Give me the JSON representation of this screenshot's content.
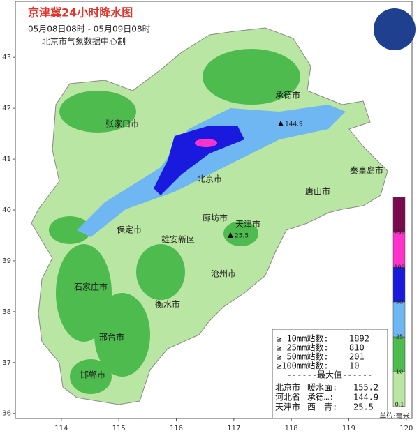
{
  "header": {
    "title": "京津冀24小时降水图",
    "period": "05月08日08时 - 05月09日08时",
    "source": "北京市气象数据中心制"
  },
  "axes": {
    "xlim": [
      113.2,
      120.1
    ],
    "ylim": [
      35.9,
      44.1
    ],
    "xticks": [
      114,
      115,
      116,
      117,
      118,
      119,
      120
    ],
    "yticks": [
      36,
      37,
      38,
      39,
      40,
      41,
      42,
      43
    ]
  },
  "cities": [
    "承德市",
    "张家口市",
    "北京市",
    "秦皇岛市",
    "唐山市",
    "廊坊市",
    "天津市",
    "保定市",
    "雄安新区",
    "沧州市",
    "石家庄市",
    "衡水市",
    "邢台市",
    "邯郸市"
  ],
  "stations": [
    144.9,
    25.5
  ],
  "legend": {
    "levels": [
      0.1,
      10,
      25,
      50,
      100,
      250
    ],
    "colors": [
      "#b9e6a2",
      "#4dbb4d",
      "#6fb7f2",
      "#1a1adf",
      "#ff33cc",
      "#7a0a4e"
    ],
    "unit": "单位:毫米"
  },
  "stats": {
    "counts": [
      {
        "label": "≥ 10mm站数:",
        "value": 1892
      },
      {
        "label": "≥ 25mm站数:",
        "value": 810
      },
      {
        "label": "≥ 50mm站数:",
        "value": 201
      },
      {
        "label": "≥100mm站数:",
        "value": 10
      }
    ],
    "max_title": "------最大值------",
    "max": [
      {
        "region": "北京市",
        "station": "暖水面:",
        "value": 155.2
      },
      {
        "region": "河北省",
        "station": "承德…:",
        "value": 144.9
      },
      {
        "region": "天津市",
        "station": "西　青:",
        "value": 25.5
      }
    ]
  }
}
